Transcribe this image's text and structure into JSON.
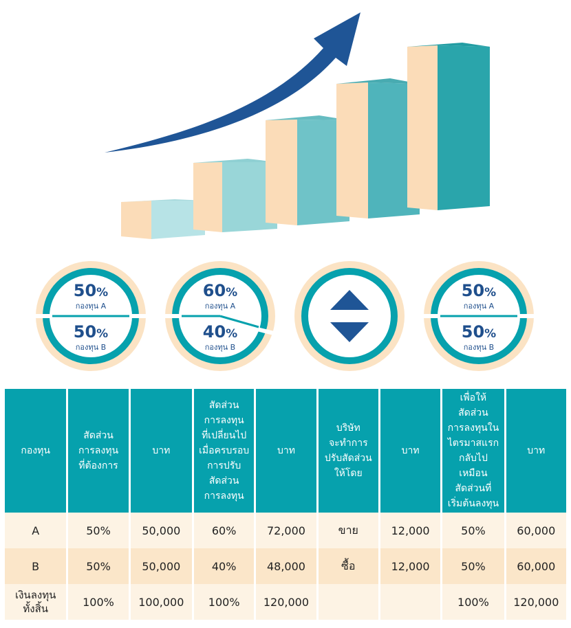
{
  "circles": [
    {
      "top_pct": "50",
      "top_unit": "%",
      "top_label": "กองทุน A",
      "bottom_pct": "50",
      "bottom_unit": "%",
      "bottom_label": "กองทุน B"
    },
    {
      "top_pct": "60",
      "top_unit": "%",
      "top_label": "กองทุน A",
      "bottom_pct": "40",
      "bottom_unit": "%",
      "bottom_label": "กองทุน B"
    },
    {
      "icon": "up-down-arrows-icon"
    },
    {
      "top_pct": "50",
      "top_unit": "%",
      "top_label": "กองทุน A",
      "bottom_pct": "50",
      "bottom_unit": "%",
      "bottom_label": "กองทุน B"
    }
  ],
  "table": {
    "headers": [
      "กองทุน",
      "สัดส่วน\nการลงทุน\nที่ต้องการ",
      "บาท",
      "สัดส่วน\nการลงทุน\nที่เปลี่ยนไป\nเมื่อครบรอบ\nการปรับ\nสัดส่วน\nการลงทุน",
      "บาท",
      "บริษัท\nจะทำการ\nปรับสัดส่วน\nให้โดย",
      "บาท",
      "เพื่อให้\nสัดส่วน\nการลงทุนใน\nไตรมาสแรก\nกลับไปเหมือน\nสัดส่วนที่\nเริ่มต้นลงทุน",
      "บาท"
    ],
    "rows": [
      [
        "A",
        "50%",
        "50,000",
        "60%",
        "72,000",
        "ขาย",
        "12,000",
        "50%",
        "60,000"
      ],
      [
        "B",
        "50%",
        "50,000",
        "40%",
        "48,000",
        "ซื้อ",
        "12,000",
        "50%",
        "60,000"
      ],
      [
        "เงินลงทุน\nทั้งสิ้น",
        "100%",
        "100,000",
        "100%",
        "120,000",
        "",
        "",
        "100%",
        "120,000"
      ]
    ]
  },
  "colors": {
    "teal": "#06a1ad",
    "navy": "#1f4f8c",
    "peach": "#fbe3c4",
    "row_light": "#fdf3e4",
    "row_dark": "#fbe6c9"
  }
}
